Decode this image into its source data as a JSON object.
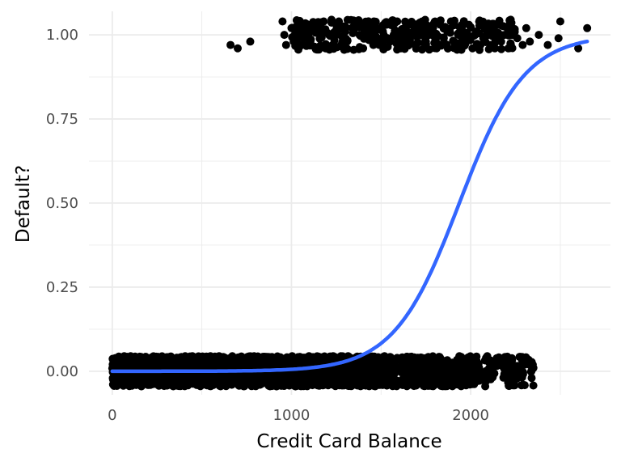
{
  "chart_data": {
    "type": "scatter",
    "xlabel": "Credit Card Balance",
    "ylabel": "Default?",
    "xlim": [
      -130,
      2780
    ],
    "ylim": [
      -0.07,
      1.07
    ],
    "x_ticks": [
      0,
      1000,
      2000
    ],
    "x_tick_labels": [
      "0",
      "1000",
      "2000"
    ],
    "y_ticks": [
      0,
      0.25,
      0.5,
      0.75,
      1
    ],
    "y_tick_labels": [
      "0.00",
      "0.25",
      "0.50",
      "0.75",
      "1.00"
    ],
    "grid": true,
    "legend": "none",
    "colors": {
      "points": "#000000",
      "fit": "#3366ff",
      "grid": "#ebebeb"
    },
    "series": [
      {
        "type": "scatter",
        "note_values": "jittered binary outcome (0 = no default, 1 = default)",
        "points_default_1": [
          [
            660,
            0.97
          ],
          [
            700,
            0.96
          ],
          [
            770,
            0.98
          ],
          [
            950,
            1.04
          ],
          [
            960,
            1.0
          ],
          [
            970,
            0.97
          ],
          [
            1000,
            1.02
          ],
          [
            1010,
            0.99
          ],
          [
            1050,
            1.03
          ],
          [
            1080,
            1.0
          ],
          [
            1100,
            0.98
          ],
          [
            1110,
            1.02
          ],
          [
            1180,
            1.04
          ],
          [
            1190,
            0.96
          ],
          [
            1210,
            1.0
          ],
          [
            1230,
            0.97
          ],
          [
            1250,
            1.03
          ],
          [
            1300,
            1.01
          ],
          [
            1310,
            0.98
          ],
          [
            1350,
            1.04
          ],
          [
            1380,
            1.0
          ],
          [
            1400,
            0.96
          ],
          [
            1420,
            1.02
          ],
          [
            1440,
            0.99
          ],
          [
            1460,
            1.04
          ],
          [
            1490,
            0.97
          ],
          [
            1510,
            1.01
          ],
          [
            1530,
            1.03
          ],
          [
            1550,
            0.98
          ],
          [
            1570,
            1.0
          ],
          [
            1590,
            1.04
          ],
          [
            1610,
            0.96
          ],
          [
            1630,
            1.02
          ],
          [
            1650,
            0.99
          ],
          [
            1670,
            1.03
          ],
          [
            1690,
            0.97
          ],
          [
            1710,
            1.01
          ],
          [
            1730,
            1.04
          ],
          [
            1750,
            0.98
          ],
          [
            1770,
            1.0
          ],
          [
            1790,
            1.02
          ],
          [
            1810,
            0.96
          ],
          [
            1830,
            1.03
          ],
          [
            1850,
            0.99
          ],
          [
            1870,
            1.01
          ],
          [
            1890,
            1.04
          ],
          [
            1910,
            0.97
          ],
          [
            1930,
            1.0
          ],
          [
            1950,
            1.02
          ],
          [
            1970,
            0.98
          ],
          [
            1990,
            1.03
          ],
          [
            2010,
            0.96
          ],
          [
            2030,
            1.01
          ],
          [
            2050,
            1.04
          ],
          [
            2070,
            0.99
          ],
          [
            2090,
            1.0
          ],
          [
            2110,
            0.97
          ],
          [
            2130,
            1.02
          ],
          [
            2150,
            1.03
          ],
          [
            2170,
            0.98
          ],
          [
            2190,
            1.0
          ],
          [
            2210,
            0.96
          ],
          [
            2230,
            1.01
          ],
          [
            2260,
            0.99
          ],
          [
            2290,
            0.97
          ],
          [
            2310,
            1.02
          ],
          [
            2330,
            0.98
          ],
          [
            2380,
            1.0
          ],
          [
            2430,
            0.97
          ],
          [
            2490,
            0.99
          ],
          [
            2500,
            1.04
          ],
          [
            2600,
            0.96
          ],
          [
            2650,
            1.02
          ]
        ],
        "points_default_0_range": [
          0,
          2360
        ],
        "points_default_0_outliers": [
          [
            2250,
            -0.02
          ],
          [
            2290,
            -0.04
          ],
          [
            2340,
            -0.02
          ],
          [
            2350,
            0.01
          ]
        ]
      },
      {
        "type": "line",
        "model": "logistic fit",
        "intercept": -10.65,
        "slope": 0.005499
      }
    ]
  }
}
